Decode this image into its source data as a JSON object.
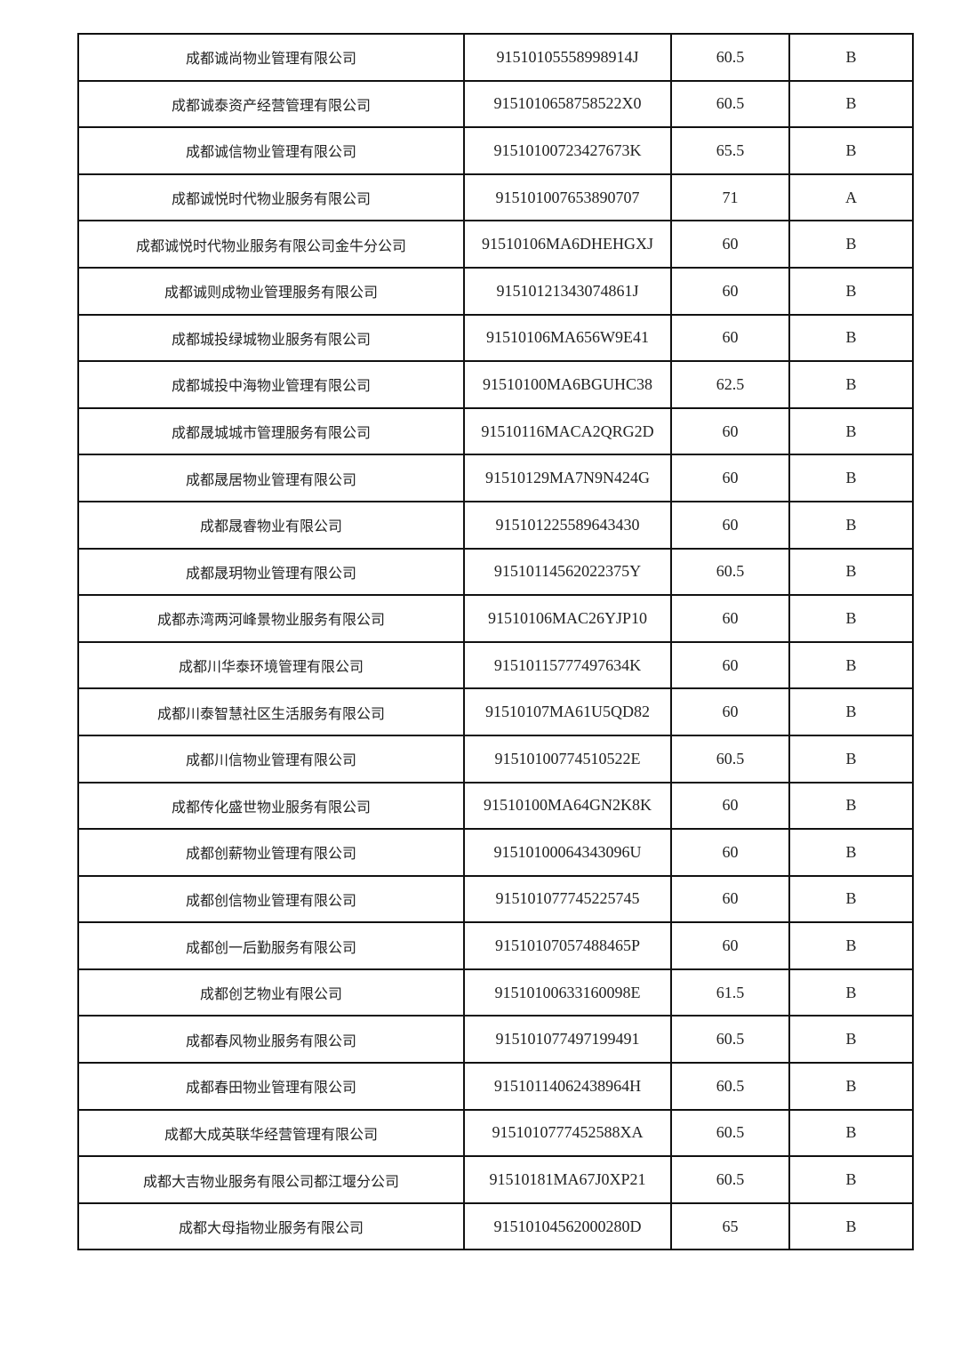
{
  "rows": [
    {
      "name": "成都诚尚物业管理有限公司",
      "code": "91510105558998914J",
      "score": "60.5",
      "grade": "B"
    },
    {
      "name": "成都诚泰资产经营管理有限公司",
      "code": "91510106587585​22X0",
      "score": "60.5",
      "grade": "B"
    },
    {
      "name": "成都诚信物业管理有限公司",
      "code": "91510100723427673K",
      "score": "65.5",
      "grade": "B"
    },
    {
      "name": "成都诚悦时代物业服务有限公司",
      "code": "915101007653890707",
      "score": "71",
      "grade": "A"
    },
    {
      "name": "成都诚悦时代物业服务有限公司金牛分公司",
      "code": "91510106MA6DHEHGXJ",
      "score": "60",
      "grade": "B"
    },
    {
      "name": "成都诚则成物业管理服务有限公司",
      "code": "91510121343074861J",
      "score": "60",
      "grade": "B"
    },
    {
      "name": "成都城投绿城物业服务有限公司",
      "code": "91510106MA656W9E41",
      "score": "60",
      "grade": "B"
    },
    {
      "name": "成都城投中海物业管理有限公司",
      "code": "91510100MA6BGUHC38",
      "score": "62.5",
      "grade": "B"
    },
    {
      "name": "成都晟城城市管理服务有限公司",
      "code": "91510116MACA2QRG2D",
      "score": "60",
      "grade": "B"
    },
    {
      "name": "成都晟居物业管理有限公司",
      "code": "91510129MA7N9N424G",
      "score": "60",
      "grade": "B"
    },
    {
      "name": "成都晟睿物业有限公司",
      "code": "915101225589643430",
      "score": "60",
      "grade": "B"
    },
    {
      "name": "成都晟玥物业管理有限公司",
      "code": "91510114562022375Y",
      "score": "60.5",
      "grade": "B"
    },
    {
      "name": "成都赤湾两河峰景物业服务有限公司",
      "code": "91510106MAC26YJP10",
      "score": "60",
      "grade": "B"
    },
    {
      "name": "成都川华泰环境管理有限公司",
      "code": "91510115777497634K",
      "score": "60",
      "grade": "B"
    },
    {
      "name": "成都川泰智慧社区生活服务有限公司",
      "code": "91510107MA61U5QD82",
      "score": "60",
      "grade": "B"
    },
    {
      "name": "成都川信物业管理有限公司",
      "code": "91510100774510522E",
      "score": "60.5",
      "grade": "B"
    },
    {
      "name": "成都传化盛世物业服务有限公司",
      "code": "91510100MA64GN2K8K",
      "score": "60",
      "grade": "B"
    },
    {
      "name": "成都创薪物业管理有限公司",
      "code": "91510100064343096U",
      "score": "60",
      "grade": "B"
    },
    {
      "name": "成都创信物业管理有限公司",
      "code": "915101077745225745",
      "score": "60",
      "grade": "B"
    },
    {
      "name": "成都创一后勤服务有限公司",
      "code": "91510107057488465P",
      "score": "60",
      "grade": "B"
    },
    {
      "name": "成都创艺物业有限公司",
      "code": "91510100633160098E",
      "score": "61.5",
      "grade": "B"
    },
    {
      "name": "成都春风物业服务有限公司",
      "code": "915101077497199491",
      "score": "60.5",
      "grade": "B"
    },
    {
      "name": "成都春田物业管理有限公司",
      "code": "91510114062438964H",
      "score": "60.5",
      "grade": "B"
    },
    {
      "name": "成都大成英联华经营管理有限公司",
      "code": "91510107774525​88XA",
      "score": "60.5",
      "grade": "B"
    },
    {
      "name": "成都大吉物业服务有限公司都江堰分公司",
      "code": "91510181MA67J0XP21",
      "score": "60.5",
      "grade": "B"
    },
    {
      "name": "成都大母指物业服务有限公司",
      "code": "91510104562000280D",
      "score": "65",
      "grade": "B"
    }
  ]
}
